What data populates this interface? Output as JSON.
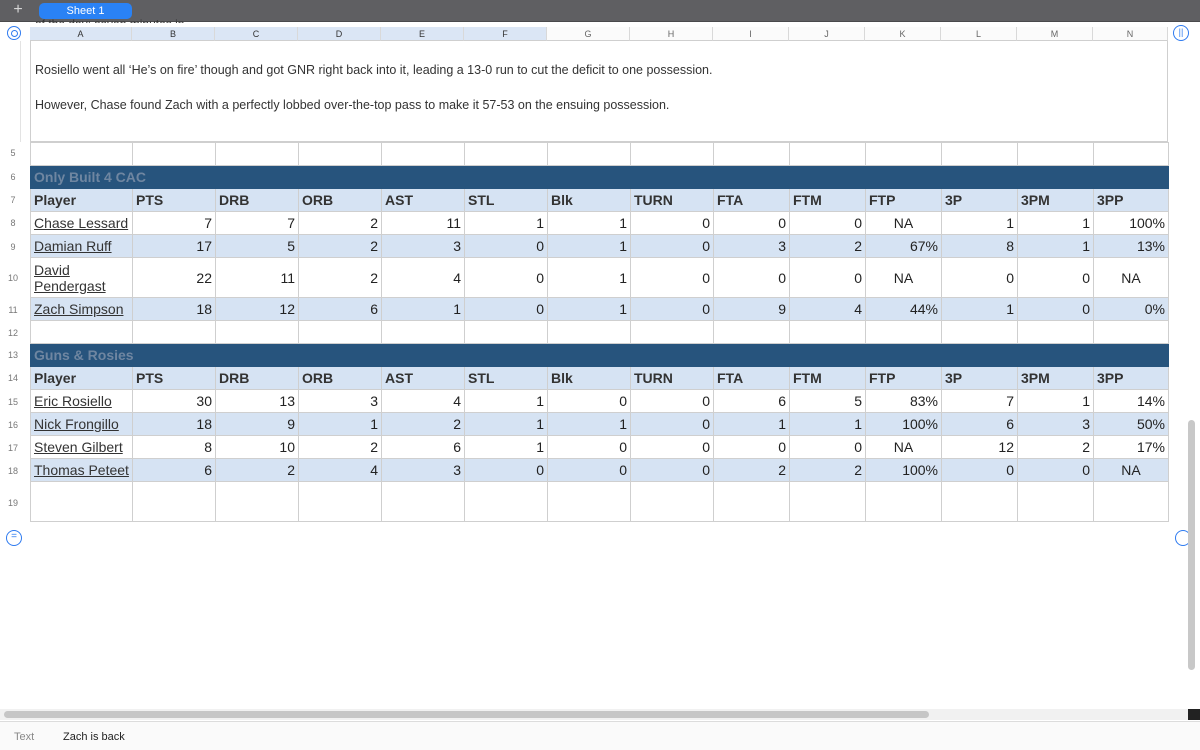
{
  "tabs": {
    "add_label": "+",
    "active_sheet": "Sheet 1"
  },
  "columns": [
    "A",
    "B",
    "C",
    "D",
    "E",
    "F",
    "G",
    "H",
    "I",
    "J",
    "K",
    "L",
    "M",
    "N"
  ],
  "row_numbers": {
    "r5": "5",
    "r6": "6",
    "r7": "7",
    "r8": "8",
    "r9": "9",
    "r10": "10",
    "r11": "11",
    "r12": "12",
    "r13": "13",
    "r14": "14",
    "r15": "15",
    "r16": "16",
    "r17": "17",
    "r18": "18",
    "r19": "19"
  },
  "notes": {
    "clipped": "of the day: seven minutes in",
    "para1": "Rosiello went all ‘He’s on fire’ though and got GNR right back into it, leading a 13-0 run to cut the deficit to one possession.",
    "para2": "However, Chase found Zach with a perfectly lobbed over-the-top pass to make it 57-53 on the ensuing possession."
  },
  "headers": [
    "Player",
    "PTS",
    "DRB",
    "ORB",
    "AST",
    "STL",
    "Blk",
    "TURN",
    "FTA",
    "FTM",
    "FTP",
    "3P",
    "3PM",
    "3PP"
  ],
  "team1": {
    "name": "Only Built 4 CAC",
    "rows": [
      [
        "Chase Lessard",
        "7",
        "7",
        "2",
        "11",
        "1",
        "1",
        "0",
        "0",
        "0",
        "NA",
        "1",
        "1",
        "100%"
      ],
      [
        "Damian Ruff",
        "17",
        "5",
        "2",
        "3",
        "0",
        "1",
        "0",
        "3",
        "2",
        "67%",
        "8",
        "1",
        "13%"
      ],
      [
        "David Pendergast",
        "22",
        "11",
        "2",
        "4",
        "0",
        "1",
        "0",
        "0",
        "0",
        "NA",
        "0",
        "0",
        "NA"
      ],
      [
        "Zach Simpson",
        "18",
        "12",
        "6",
        "1",
        "0",
        "1",
        "0",
        "9",
        "4",
        "44%",
        "1",
        "0",
        "0%"
      ]
    ]
  },
  "team2": {
    "name": "Guns & Rosies",
    "rows": [
      [
        "Eric Rosiello",
        "30",
        "13",
        "3",
        "4",
        "1",
        "0",
        "0",
        "6",
        "5",
        "83%",
        "7",
        "1",
        "14%"
      ],
      [
        "Nick Frongillo",
        "18",
        "9",
        "1",
        "2",
        "1",
        "1",
        "0",
        "1",
        "1",
        "100%",
        "6",
        "3",
        "50%"
      ],
      [
        "Steven Gilbert",
        "8",
        "10",
        "2",
        "6",
        "1",
        "0",
        "0",
        "0",
        "0",
        "NA",
        "12",
        "2",
        "17%"
      ],
      [
        "Thomas Peteet",
        "6",
        "2",
        "4",
        "3",
        "0",
        "0",
        "0",
        "2",
        "2",
        "100%",
        "0",
        "0",
        "NA"
      ]
    ]
  },
  "statusbar": {
    "type": "Text",
    "value": "Zach is back"
  },
  "colors": {
    "banner": "#27547d",
    "header_fill": "#d6e3f3",
    "accent": "#2a82f5"
  }
}
